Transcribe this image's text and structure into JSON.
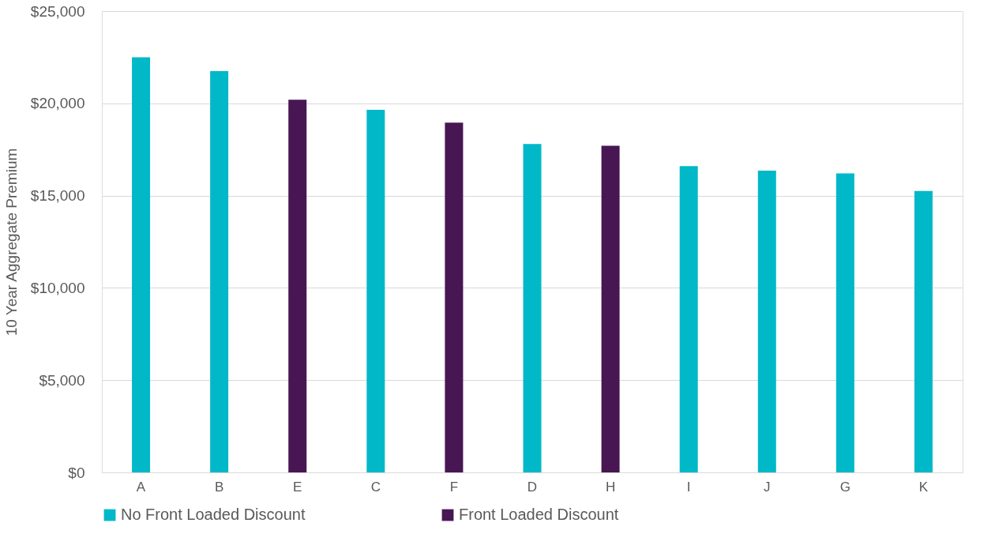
{
  "chart_data": {
    "type": "bar",
    "ylabel": "10 Year Aggregate Premium",
    "categories": [
      "A",
      "B",
      "E",
      "C",
      "F",
      "D",
      "H",
      "I",
      "J",
      "G",
      "K"
    ],
    "series": [
      {
        "name": "No Front Loaded Discount",
        "color": "#00b8c8",
        "values": [
          22500,
          21750,
          null,
          19650,
          null,
          17800,
          null,
          16600,
          16350,
          16200,
          15250
        ]
      },
      {
        "name": "Front Loaded Discount",
        "color": "#481653",
        "values": [
          null,
          null,
          20200,
          null,
          18950,
          null,
          17700,
          null,
          null,
          null,
          null
        ]
      }
    ],
    "ylim": [
      0,
      25000
    ],
    "yticks": [
      {
        "value": 0,
        "label": "$0"
      },
      {
        "value": 5000,
        "label": "$5,000"
      },
      {
        "value": 10000,
        "label": "$10,000"
      },
      {
        "value": 15000,
        "label": "$15,000"
      },
      {
        "value": 20000,
        "label": "$20,000"
      },
      {
        "value": 25000,
        "label": "$25,000"
      }
    ],
    "grid": "y",
    "legend": "bottom"
  }
}
